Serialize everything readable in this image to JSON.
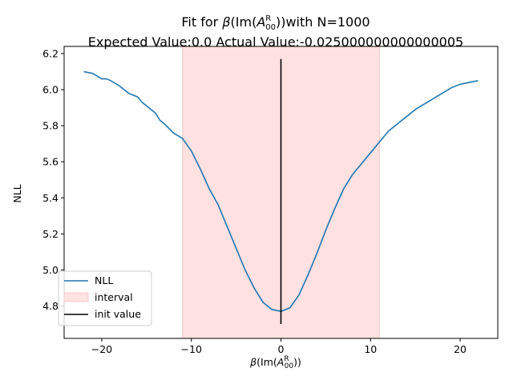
{
  "chart_data": {
    "type": "line",
    "title_line1_prefix": "Fit for ",
    "title_line1_symbol": "β",
    "title_line1_open": "(Im(",
    "title_line1_A": "A",
    "title_line1_sup": "R",
    "title_line1_sub": "00",
    "title_line1_close": "))with N=1000",
    "title_line2": "Expected Value:0.0 Actual Value:-0.025000000000000005",
    "xlabel_symbol": "β",
    "xlabel_open": "(Im(",
    "xlabel_A": "A",
    "xlabel_sup": "R",
    "xlabel_sub": "00",
    "xlabel_close": "))",
    "ylabel": "NLL",
    "xlim": [
      -24.2,
      24.2
    ],
    "ylim": [
      4.62,
      6.24
    ],
    "xticks": [
      -20,
      -10,
      0,
      10,
      20
    ],
    "xtick_labels": [
      "−20",
      "−10",
      "0",
      "10",
      "20"
    ],
    "yticks": [
      4.8,
      5.0,
      5.2,
      5.4,
      5.6,
      5.8,
      6.0,
      6.2
    ],
    "ytick_labels": [
      "4.8",
      "5.0",
      "5.2",
      "5.4",
      "5.6",
      "5.8",
      "6.0",
      "6.2"
    ],
    "grid": false,
    "legend_position": "lower-left",
    "interval": {
      "x0": -11,
      "x1": 11,
      "label": "interval",
      "color": "#ffe1e1"
    },
    "init_value": {
      "x": 0,
      "y0": 4.7,
      "y1": 6.17,
      "label": "init value",
      "color": "#000000"
    },
    "series": [
      {
        "name": "NLL",
        "color": "#1f77b4",
        "x": [
          -22,
          -21,
          -20,
          -19.5,
          -19,
          -18,
          -17,
          -16,
          -15.5,
          -15,
          -14,
          -13.5,
          -13,
          -12,
          -11,
          -10,
          -9,
          -8,
          -7,
          -6,
          -5,
          -4,
          -3,
          -2,
          -1,
          0,
          1,
          2,
          3,
          4,
          5,
          6,
          7,
          8,
          9,
          10,
          11,
          12,
          13,
          14,
          15,
          16,
          17,
          18,
          19,
          20,
          21,
          22
        ],
        "y": [
          6.1,
          6.09,
          6.06,
          6.06,
          6.05,
          6.02,
          5.98,
          5.96,
          5.93,
          5.91,
          5.87,
          5.83,
          5.81,
          5.76,
          5.73,
          5.66,
          5.56,
          5.45,
          5.36,
          5.24,
          5.12,
          5.0,
          4.9,
          4.82,
          4.78,
          4.77,
          4.79,
          4.86,
          4.97,
          5.09,
          5.22,
          5.34,
          5.45,
          5.53,
          5.59,
          5.65,
          5.71,
          5.77,
          5.81,
          5.85,
          5.89,
          5.92,
          5.95,
          5.98,
          6.01,
          6.03,
          6.04,
          6.05
        ]
      }
    ]
  }
}
